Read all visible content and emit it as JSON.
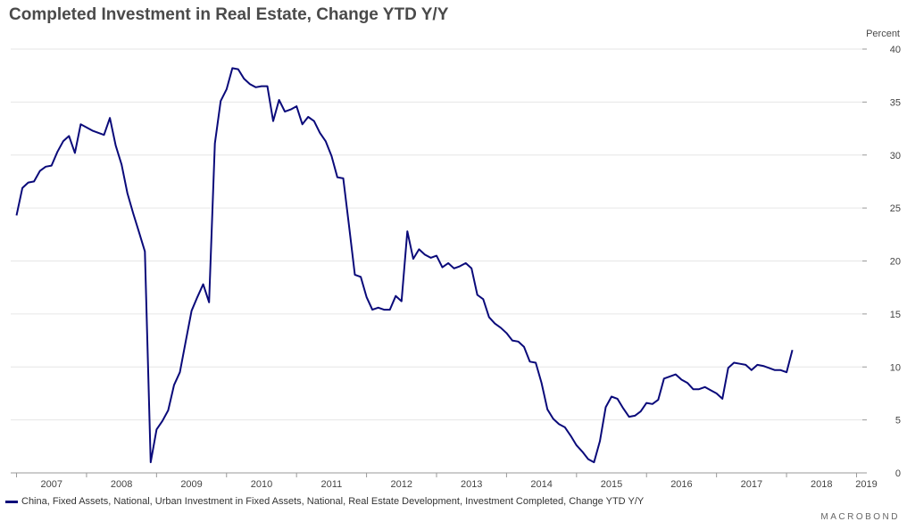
{
  "title": "Completed Investment in Real Estate, Change YTD Y/Y",
  "unit_label": "Percent",
  "brand": "MACROBOND",
  "colors": {
    "series": "#0a0a7a",
    "grid": "#e6e6e6",
    "axis": "#999999",
    "text": "#444444"
  },
  "chart_data": {
    "type": "line",
    "title": "Completed Investment in Real Estate, Change YTD Y/Y",
    "ylabel": "Percent",
    "xlabel": "",
    "ylim": [
      0,
      40
    ],
    "xlim": [
      "2006-12",
      "2019-02"
    ],
    "y_ticks": [
      0,
      5,
      10,
      15,
      20,
      25,
      30,
      35,
      40
    ],
    "x_tick_labels": [
      "2007",
      "2008",
      "2009",
      "2010",
      "2011",
      "2012",
      "2013",
      "2014",
      "2015",
      "2016",
      "2017",
      "2018",
      "2019"
    ],
    "grid": true,
    "y_axis_position": "right",
    "legend_position": "bottom-left",
    "series": [
      {
        "name": "China, Fixed Assets, National, Urban Investment in Fixed Assets, National, Real Estate Development, Investment Completed, Change YTD Y/Y",
        "color": "#0a0a7a",
        "points": [
          [
            "2007-01",
            24.3
          ],
          [
            "2007-02",
            26.9
          ],
          [
            "2007-03",
            27.4
          ],
          [
            "2007-04",
            27.5
          ],
          [
            "2007-05",
            28.5
          ],
          [
            "2007-06",
            28.9
          ],
          [
            "2007-07",
            29.0
          ],
          [
            "2007-08",
            30.3
          ],
          [
            "2007-09",
            31.3
          ],
          [
            "2007-10",
            31.8
          ],
          [
            "2007-11",
            30.2
          ],
          [
            "2007-12",
            32.9
          ],
          [
            "2008-02",
            32.3
          ],
          [
            "2008-03",
            32.1
          ],
          [
            "2008-04",
            31.9
          ],
          [
            "2008-05",
            33.5
          ],
          [
            "2008-06",
            30.9
          ],
          [
            "2008-07",
            29.1
          ],
          [
            "2008-08",
            26.4
          ],
          [
            "2008-09",
            24.5
          ],
          [
            "2008-10",
            22.7
          ],
          [
            "2008-11",
            20.9
          ],
          [
            "2008-12",
            1.0
          ],
          [
            "2009-01",
            4.1
          ],
          [
            "2009-02",
            4.9
          ],
          [
            "2009-03",
            5.9
          ],
          [
            "2009-04",
            8.3
          ],
          [
            "2009-05",
            9.5
          ],
          [
            "2009-06",
            12.4
          ],
          [
            "2009-07",
            15.3
          ],
          [
            "2009-08",
            16.6
          ],
          [
            "2009-09",
            17.8
          ],
          [
            "2009-10",
            16.1
          ],
          [
            "2009-11",
            31.1
          ],
          [
            "2009-12",
            35.1
          ],
          [
            "2010-01",
            36.2
          ],
          [
            "2010-02",
            38.2
          ],
          [
            "2010-03",
            38.1
          ],
          [
            "2010-04",
            37.2
          ],
          [
            "2010-05",
            36.7
          ],
          [
            "2010-06",
            36.4
          ],
          [
            "2010-07",
            36.5
          ],
          [
            "2010-08",
            36.5
          ],
          [
            "2010-09",
            33.2
          ],
          [
            "2010-10",
            35.2
          ],
          [
            "2010-11",
            34.1
          ],
          [
            "2010-12",
            34.3
          ],
          [
            "2011-01",
            34.6
          ],
          [
            "2011-02",
            32.9
          ],
          [
            "2011-03",
            33.6
          ],
          [
            "2011-04",
            33.2
          ],
          [
            "2011-05",
            32.1
          ],
          [
            "2011-06",
            31.3
          ],
          [
            "2011-07",
            29.9
          ],
          [
            "2011-08",
            27.9
          ],
          [
            "2011-09",
            27.8
          ],
          [
            "2011-10",
            23.3
          ],
          [
            "2011-11",
            18.7
          ],
          [
            "2011-12",
            18.5
          ],
          [
            "2012-01",
            16.6
          ],
          [
            "2012-02",
            15.4
          ],
          [
            "2012-03",
            15.6
          ],
          [
            "2012-04",
            15.4
          ],
          [
            "2012-05",
            15.4
          ],
          [
            "2012-06",
            16.7
          ],
          [
            "2012-07",
            16.2
          ],
          [
            "2012-08",
            22.8
          ],
          [
            "2012-09",
            20.2
          ],
          [
            "2012-10",
            21.1
          ],
          [
            "2012-11",
            20.6
          ],
          [
            "2012-12",
            20.3
          ],
          [
            "2013-01",
            20.5
          ],
          [
            "2013-02",
            19.4
          ],
          [
            "2013-03",
            19.8
          ],
          [
            "2013-04",
            19.3
          ],
          [
            "2013-05",
            19.5
          ],
          [
            "2013-06",
            19.8
          ],
          [
            "2013-07",
            19.3
          ],
          [
            "2013-08",
            16.8
          ],
          [
            "2013-09",
            16.4
          ],
          [
            "2013-10",
            14.7
          ],
          [
            "2013-11",
            14.1
          ],
          [
            "2013-12",
            13.7
          ],
          [
            "2014-01",
            13.2
          ],
          [
            "2014-02",
            12.5
          ],
          [
            "2014-03",
            12.4
          ],
          [
            "2014-04",
            11.9
          ],
          [
            "2014-05",
            10.5
          ],
          [
            "2014-06",
            10.4
          ],
          [
            "2014-07",
            8.5
          ],
          [
            "2014-08",
            6.0
          ],
          [
            "2014-09",
            5.1
          ],
          [
            "2014-10",
            4.6
          ],
          [
            "2014-11",
            4.3
          ],
          [
            "2014-12",
            3.5
          ],
          [
            "2015-01",
            2.6
          ],
          [
            "2015-02",
            2.0
          ],
          [
            "2015-03",
            1.3
          ],
          [
            "2015-04",
            1.0
          ],
          [
            "2015-05",
            3.0
          ],
          [
            "2015-06",
            6.2
          ],
          [
            "2015-07",
            7.2
          ],
          [
            "2015-08",
            7.0
          ],
          [
            "2015-09",
            6.1
          ],
          [
            "2015-10",
            5.3
          ],
          [
            "2015-11",
            5.4
          ],
          [
            "2015-12",
            5.8
          ],
          [
            "2016-01",
            6.6
          ],
          [
            "2016-02",
            6.5
          ],
          [
            "2016-03",
            6.9
          ],
          [
            "2016-04",
            8.9
          ],
          [
            "2016-05",
            9.1
          ],
          [
            "2016-06",
            9.3
          ],
          [
            "2016-07",
            8.8
          ],
          [
            "2016-08",
            8.5
          ],
          [
            "2016-09",
            7.9
          ],
          [
            "2016-10",
            7.9
          ],
          [
            "2016-11",
            8.1
          ],
          [
            "2016-12",
            7.8
          ],
          [
            "2017-01",
            7.5
          ],
          [
            "2017-02",
            7.0
          ],
          [
            "2017-03",
            9.9
          ],
          [
            "2017-04",
            10.4
          ],
          [
            "2017-05",
            10.3
          ],
          [
            "2017-06",
            10.2
          ],
          [
            "2017-07",
            9.7
          ],
          [
            "2017-08",
            10.2
          ],
          [
            "2017-09",
            10.1
          ],
          [
            "2017-10",
            9.9
          ],
          [
            "2017-11",
            9.7
          ],
          [
            "2017-12",
            9.7
          ],
          [
            "2018-01",
            9.5
          ],
          [
            "2018-02",
            11.6
          ]
        ]
      }
    ]
  }
}
